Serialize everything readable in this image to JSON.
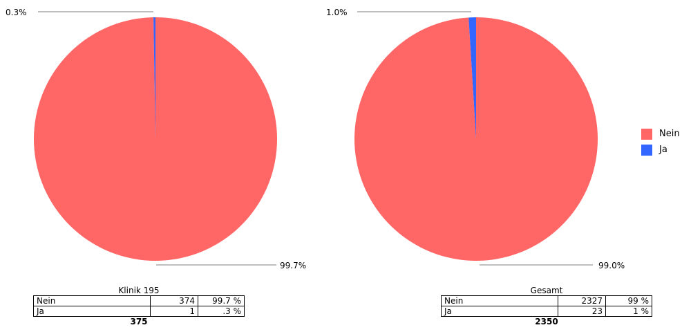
{
  "chart_data": [
    {
      "type": "pie",
      "title": "Klinik 195",
      "slices": [
        {
          "label": "Nein",
          "value": 374,
          "percent": 99.7,
          "color": "#ff6666"
        },
        {
          "label": "Ja",
          "value": 1,
          "percent": 0.3,
          "color": "#3366ff"
        }
      ],
      "slice_labels": [
        "0.3%",
        "99.7%"
      ],
      "table": {
        "rows": [
          {
            "label": "Nein",
            "count": "374",
            "pct": "99.7 %"
          },
          {
            "label": "Ja",
            "count": "1",
            "pct": ".3 %"
          }
        ],
        "total": "375"
      }
    },
    {
      "type": "pie",
      "title": "Gesamt",
      "slices": [
        {
          "label": "Nein",
          "value": 2327,
          "percent": 99.0,
          "color": "#ff6666"
        },
        {
          "label": "Ja",
          "value": 23,
          "percent": 1.0,
          "color": "#3366ff"
        }
      ],
      "slice_labels": [
        "1.0%",
        "99.0%"
      ],
      "table": {
        "rows": [
          {
            "label": "Nein",
            "count": "2327",
            "pct": "99 %"
          },
          {
            "label": "Ja",
            "count": "23",
            "pct": "1 %"
          }
        ],
        "total": "2350"
      }
    }
  ],
  "legend": [
    {
      "label": "Nein",
      "color": "#ff6666"
    },
    {
      "label": "Ja",
      "color": "#3366ff"
    }
  ]
}
